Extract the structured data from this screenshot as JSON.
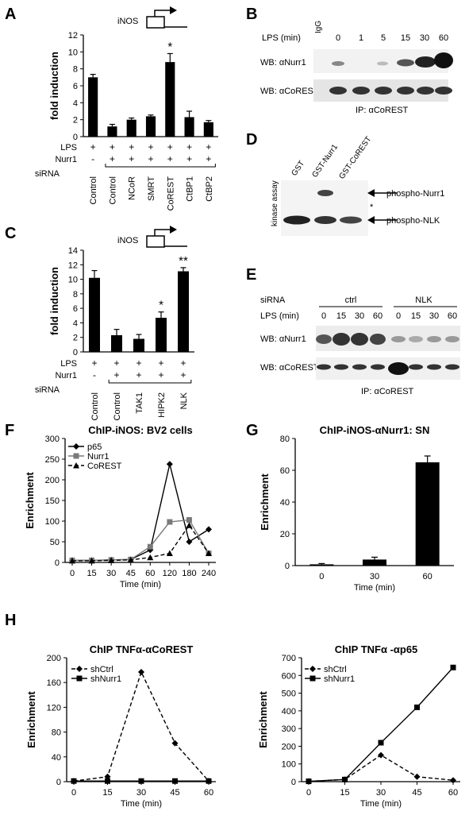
{
  "panel_labels": {
    "A": "A",
    "B": "B",
    "C": "C",
    "D": "D",
    "E": "E",
    "F": "F",
    "G": "G",
    "H": "H"
  },
  "gene_label": "iNOS",
  "row_labels": {
    "lps": "LPS",
    "nurr1": "Nurr1",
    "sirna": "siRNA"
  },
  "B": {
    "lps_label": "LPS (min)",
    "lanes": [
      "IgG",
      "0",
      "1",
      "5",
      "15",
      "30",
      "60"
    ],
    "wb1": "WB: αNurr1",
    "wb2": "WB: αCoREST",
    "ip": "IP: αCoREST"
  },
  "D": {
    "lanes": [
      "GST",
      "GST-Nurr1",
      "GST-CoREST"
    ],
    "side_label": "kinase assay",
    "arrow1": "phospho-Nurr1",
    "arrow2": "phospho-NLK",
    "star": "*"
  },
  "E": {
    "sirna_label": "siRNA",
    "group1": "ctrl",
    "group2": "NLK",
    "lps_label": "LPS (min)",
    "lanes": [
      "0",
      "15",
      "30",
      "60",
      "0",
      "15",
      "30",
      "60"
    ],
    "wb1": "WB: αNurr1",
    "wb2": "WB: αCoREST",
    "ip": "IP: αCoREST"
  },
  "chart_data": [
    {
      "panel": "A",
      "type": "bar",
      "ylabel": "fold induction",
      "ylim": [
        0,
        12
      ],
      "yticks": [
        "0",
        "2",
        "4",
        "6",
        "8",
        "10",
        "12"
      ],
      "categories": [
        "Control",
        "Control",
        "NCoR",
        "SMRT",
        "CoREST",
        "CtBP1",
        "CtBP2"
      ],
      "values": [
        7.0,
        1.2,
        2.0,
        2.4,
        8.8,
        2.3,
        1.7
      ],
      "errors": [
        0.35,
        0.25,
        0.2,
        0.15,
        1.0,
        0.7,
        0.2
      ],
      "annotations": [
        {
          "index": 4,
          "text": "*"
        }
      ],
      "lps": [
        "+",
        "+",
        "+",
        "+",
        "+",
        "+",
        "+"
      ],
      "nurr1": [
        "-",
        "+",
        "+",
        "+",
        "+",
        "+",
        "+"
      ]
    },
    {
      "panel": "C",
      "type": "bar",
      "ylabel": "fold induction",
      "ylim": [
        0,
        14
      ],
      "yticks": [
        "0",
        "2",
        "4",
        "6",
        "8",
        "10",
        "12",
        "14"
      ],
      "categories": [
        "Control",
        "Control",
        "TAK1",
        "HIPK2",
        "NLK"
      ],
      "values": [
        10.2,
        2.3,
        1.8,
        4.7,
        11.1
      ],
      "errors": [
        1.0,
        0.8,
        0.6,
        0.8,
        0.5
      ],
      "annotations": [
        {
          "index": 3,
          "text": "*"
        },
        {
          "index": 4,
          "text": "**"
        }
      ],
      "lps": [
        "+",
        "+",
        "+",
        "+",
        "+"
      ],
      "nurr1": [
        "-",
        "+",
        "+",
        "+",
        "+"
      ]
    },
    {
      "panel": "F",
      "type": "line",
      "title": "ChIP-iNOS: BV2 cells",
      "xlabel": "Time (min)",
      "ylabel": "Enrichment",
      "x": [
        "0",
        "15",
        "30",
        "45",
        "60",
        "120",
        "180",
        "240"
      ],
      "ylim": [
        0,
        300
      ],
      "yticks": [
        "0",
        "50",
        "100",
        "150",
        "200",
        "250",
        "300"
      ],
      "legend_position": "top-left",
      "series": [
        {
          "name": "p65",
          "values": [
            5,
            5,
            6,
            7,
            30,
            238,
            50,
            80
          ],
          "color": "#000000",
          "dash": "",
          "marker": "diamond"
        },
        {
          "name": "Nurr1",
          "values": [
            5,
            5,
            6,
            7,
            38,
            98,
            103,
            22
          ],
          "color": "#7a7a7a",
          "dash": "",
          "marker": "square"
        },
        {
          "name": "CoREST",
          "values": [
            4,
            4,
            5,
            6,
            12,
            22,
            90,
            22
          ],
          "color": "#000000",
          "dash": "5,3",
          "marker": "triangle"
        }
      ]
    },
    {
      "panel": "G",
      "type": "bar",
      "title": "ChIP-iNOS-αNurr1: SN",
      "xlabel": "Time (min)",
      "ylabel": "Enrichment",
      "categories": [
        "0",
        "30",
        "60"
      ],
      "values": [
        0.8,
        3.8,
        65
      ],
      "errors": [
        0.5,
        1.5,
        4
      ],
      "ylim": [
        0,
        80
      ],
      "yticks": [
        "0",
        "20",
        "40",
        "60",
        "80"
      ]
    },
    {
      "panel": "H1",
      "type": "line",
      "title": "ChIP TNFα-αCoREST",
      "xlabel": "Time (min)",
      "ylabel": "Enrichment",
      "x": [
        "0",
        "15",
        "30",
        "45",
        "60"
      ],
      "ylim": [
        0,
        200
      ],
      "yticks": [
        "0",
        "40",
        "80",
        "120",
        "160",
        "200"
      ],
      "legend_position": "top-left",
      "series": [
        {
          "name": "shCtrl",
          "values": [
            1,
            8,
            177,
            62,
            1
          ],
          "color": "#000000",
          "dash": "5,3",
          "marker": "diamond"
        },
        {
          "name": "shNurr1",
          "values": [
            1,
            1,
            1,
            1,
            1
          ],
          "color": "#000000",
          "dash": "",
          "marker": "square"
        }
      ]
    },
    {
      "panel": "H2",
      "type": "line",
      "title": "ChIP TNFα -αp65",
      "xlabel": "Time (min)",
      "ylabel": "Enrichment",
      "x": [
        "0",
        "15",
        "30",
        "45",
        "60"
      ],
      "ylim": [
        0,
        700
      ],
      "yticks": [
        "0",
        "100",
        "200",
        "300",
        "400",
        "500",
        "600",
        "700"
      ],
      "legend_position": "top-left",
      "series": [
        {
          "name": "shCtrl",
          "values": [
            2,
            12,
            150,
            28,
            8
          ],
          "color": "#000000",
          "dash": "5,3",
          "marker": "diamond"
        },
        {
          "name": "shNurr1",
          "values": [
            2,
            12,
            220,
            420,
            645
          ],
          "color": "#000000",
          "dash": "",
          "marker": "square"
        }
      ]
    }
  ]
}
